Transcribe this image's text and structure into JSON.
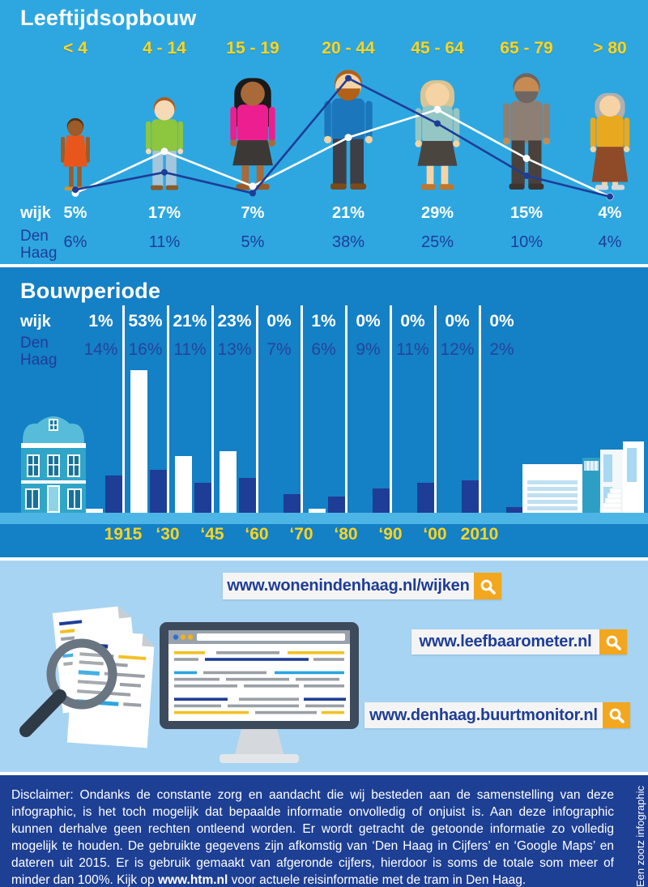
{
  "age_section": {
    "title": "Leeftijdsopbouw",
    "categories": [
      "< 4",
      "4 - 14",
      "15 - 19",
      "20 - 44",
      "45 - 64",
      "65 - 79",
      "> 80"
    ],
    "wijk_label": "wijk",
    "den_haag_label": "Den Haag",
    "wijk_values": [
      "5%",
      "17%",
      "7%",
      "21%",
      "29%",
      "15%",
      "4%"
    ],
    "den_haag_values": [
      "6%",
      "11%",
      "5%",
      "38%",
      "25%",
      "10%",
      "4%"
    ]
  },
  "build_section": {
    "title": "Bouwperiode",
    "wijk_label": "wijk",
    "den_haag_label": "Den Haag",
    "wijk_values": [
      "1%",
      "53%",
      "21%",
      "23%",
      "0%",
      "1%",
      "0%",
      "0%",
      "0%",
      "0%"
    ],
    "den_haag_values": [
      "14%",
      "16%",
      "11%",
      "13%",
      "7%",
      "6%",
      "9%",
      "11%",
      "12%",
      "2%"
    ],
    "year_labels": [
      "1915",
      "‘30",
      "‘45",
      "‘60",
      "‘70",
      "‘80",
      "‘90",
      "‘00",
      "2010"
    ]
  },
  "chart_data": [
    {
      "type": "line",
      "title": "Leeftijdsopbouw",
      "unit": "%",
      "categories": [
        "< 4",
        "4 - 14",
        "15 - 19",
        "20 - 44",
        "45 - 64",
        "65 - 79",
        "> 80"
      ],
      "series": [
        {
          "name": "wijk",
          "color": "#FFFFFF",
          "values": [
            5,
            17,
            7,
            21,
            29,
            15,
            4
          ]
        },
        {
          "name": "Den Haag",
          "color": "#1E3D96",
          "values": [
            6,
            11,
            5,
            38,
            25,
            10,
            4
          ]
        }
      ],
      "legend_position": "left-row-labels",
      "grid": false
    },
    {
      "type": "bar",
      "title": "Bouwperiode",
      "unit": "%",
      "categories": [
        "< 1915",
        "1915-‘30",
        "‘30-‘45",
        "‘45-‘60",
        "‘60-‘70",
        "‘70-‘80",
        "‘80-‘90",
        "‘90-‘00",
        "‘00-2010",
        "> 2010"
      ],
      "axis_tick_labels": [
        "1915",
        "‘30",
        "‘45",
        "‘60",
        "‘70",
        "‘80",
        "‘90",
        "‘00",
        "2010"
      ],
      "series": [
        {
          "name": "wijk",
          "color": "#FFFFFF",
          "values": [
            1,
            53,
            21,
            23,
            0,
            1,
            0,
            0,
            0,
            0
          ]
        },
        {
          "name": "Den Haag",
          "color": "#1E3D96",
          "values": [
            14,
            16,
            11,
            13,
            7,
            6,
            9,
            11,
            12,
            2
          ]
        }
      ],
      "grid": false
    }
  ],
  "people": [
    {
      "age_group": "< 4",
      "skin": "#9C5B28",
      "hair": "#53300F",
      "hair_style": "short",
      "beard": false,
      "top": "#E9561C",
      "bottom_type": "dress",
      "bottom": "#E9561C",
      "shoes": "#DE9126",
      "height": 92
    },
    {
      "age_group": "4 - 14",
      "skin": "#F6D9B5",
      "hair": "#AA5B1C",
      "hair_style": "short",
      "beard": false,
      "top": "#8DC63F",
      "bottom_type": "pants",
      "bottom": "#A3C6DC",
      "shoes": "#8A5A2B",
      "height": 118
    },
    {
      "age_group": "15 - 19",
      "skin": "#A86A39",
      "hair": "#1A1A1A",
      "hair_style": "long",
      "beard": false,
      "top": "#ED1E90",
      "bottom_type": "skirt",
      "bottom": "#3C3835",
      "shoes": "#9A5B25",
      "height": 142
    },
    {
      "age_group": "20 - 44",
      "skin": "#F6D3A4",
      "hair": "#B26018",
      "hair_style": "short",
      "beard": true,
      "top": "#1B76BC",
      "bottom_type": "pants",
      "bottom": "#3E3E47",
      "shoes": "#7A4A1A",
      "height": 152
    },
    {
      "age_group": "45 - 64",
      "skin": "#F6D3A4",
      "hair": "#DCC491",
      "hair_style": "bob",
      "beard": false,
      "top": "#93C6C5",
      "bottom_type": "skirt",
      "bottom": "#4B4540",
      "shoes": "#C0762B",
      "height": 140
    },
    {
      "age_group": "65 - 79",
      "skin": "#C68B53",
      "hair": "#6F6661",
      "hair_style": "short",
      "beard": true,
      "top": "#8D7F73",
      "bottom_type": "pants",
      "bottom": "#4A413D",
      "shoes": "#3C3531",
      "height": 148
    },
    {
      "age_group": "> 80",
      "skin": "#F6D3A4",
      "hair": "#B0B0B0",
      "hair_style": "bob",
      "beard": false,
      "top": "#E9A91F",
      "bottom_type": "longskirt",
      "bottom": "#8F4A28",
      "shoes": "#D8D8D8",
      "height": 124
    }
  ],
  "links_section": {
    "links": [
      "www.wonenindenhaag.nl/wijken",
      "www.leefbaarometer.nl",
      "www.denhaag.buurtmonitor.nl"
    ]
  },
  "footer": {
    "disclaimer_prefix": "Disclaimer: Ondanks de constante zorg en aandacht die wij besteden aan de samenstelling van deze infographic, is het toch mogelijk dat bepaalde informatie onvolledig of onjuist is. Aan deze infographic kunnen derhalve geen rechten ontleend worden. Er wordt getracht de getoonde informatie zo volledig mogelijk te houden. De gebruikte gegevens zijn afkomstig van ‘Den Haag in Cijfers’ en ‘Google Maps’ en dateren uit 2015. Er is gebruik gemaakt van afgeronde cijfers, hierdoor is soms de totale som meer of minder dan 100%. Kijk op ",
    "disclaimer_link": "www.htm.nl",
    "disclaimer_suffix": " voor actuele reisinformatie met de tram in Den Haag.",
    "credit": "Een zootz infographic"
  },
  "colors": {
    "section1_bg": "#2EA7E0",
    "section2_bg": "#1480C6",
    "section3_bg": "#A7D4F2",
    "footer_bg": "#1D3F94",
    "ground_band": "#4DB5E6",
    "yellow": "#FFD41C",
    "orange": "#F3A71E",
    "navy": "#1E3D96",
    "white": "#FFFFFF"
  }
}
